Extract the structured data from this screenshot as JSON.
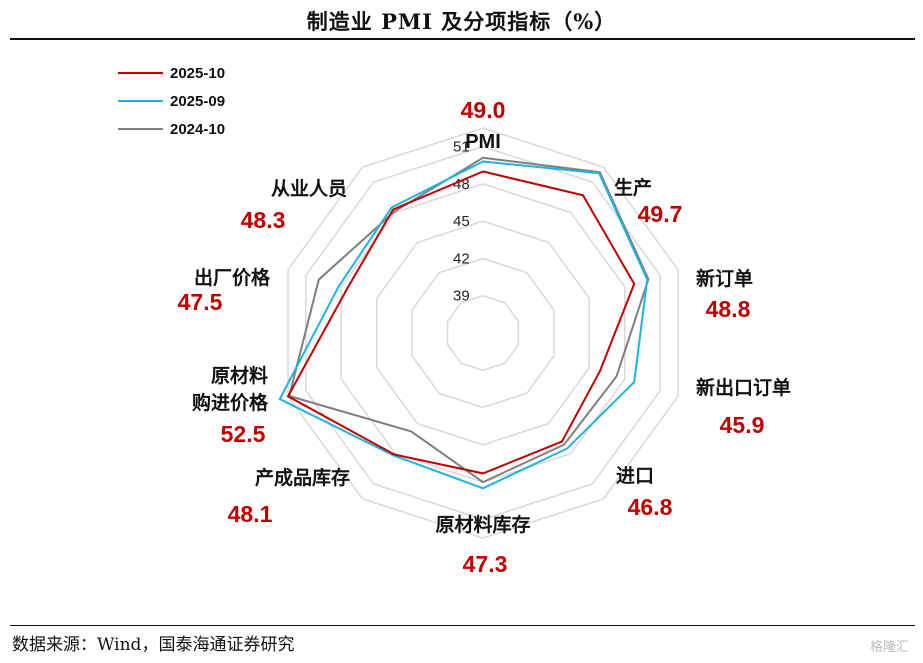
{
  "title": "制造业 PMI 及分项指标（%）",
  "source": "数据来源：Wind，国泰海通证券研究",
  "watermark": "格隆汇",
  "chart_data": {
    "type": "radar",
    "title": "制造业 PMI 及分项指标（%）",
    "rlim": [
      36,
      52.5
    ],
    "ticks": [
      39,
      42,
      45,
      48,
      51
    ],
    "grid": true,
    "legend_position": "top-left",
    "axes": [
      {
        "name": "PMI",
        "value_label": "49.0"
      },
      {
        "name": "生产",
        "value_label": "49.7"
      },
      {
        "name": "新订单",
        "value_label": "48.8"
      },
      {
        "name": "新出口订单",
        "value_label": "45.9"
      },
      {
        "name": "进口",
        "value_label": "46.8"
      },
      {
        "name": "原材料库存",
        "value_label": "47.3"
      },
      {
        "name": "产成品库存",
        "value_label": "48.1"
      },
      {
        "name": "原材料购进价格",
        "value_label": "52.5"
      },
      {
        "name": "出厂价格",
        "value_label": "47.5"
      },
      {
        "name": "从业人员",
        "value_label": "48.3"
      }
    ],
    "series": [
      {
        "name": "2025-10",
        "color": "#c00000",
        "values": [
          49.0,
          49.7,
          48.8,
          45.9,
          46.8,
          47.3,
          48.1,
          52.5,
          47.5,
          48.3
        ]
      },
      {
        "name": "2025-09",
        "color": "#1fb3e0",
        "values": [
          49.8,
          51.9,
          49.9,
          48.8,
          47.5,
          48.5,
          48.2,
          53.2,
          48.2,
          48.5
        ]
      },
      {
        "name": "2024-10",
        "color": "#7f7f7f",
        "values": [
          50.1,
          52.0,
          50.0,
          47.3,
          47.1,
          48.0,
          45.8,
          52.4,
          49.9,
          48.1
        ]
      }
    ]
  }
}
